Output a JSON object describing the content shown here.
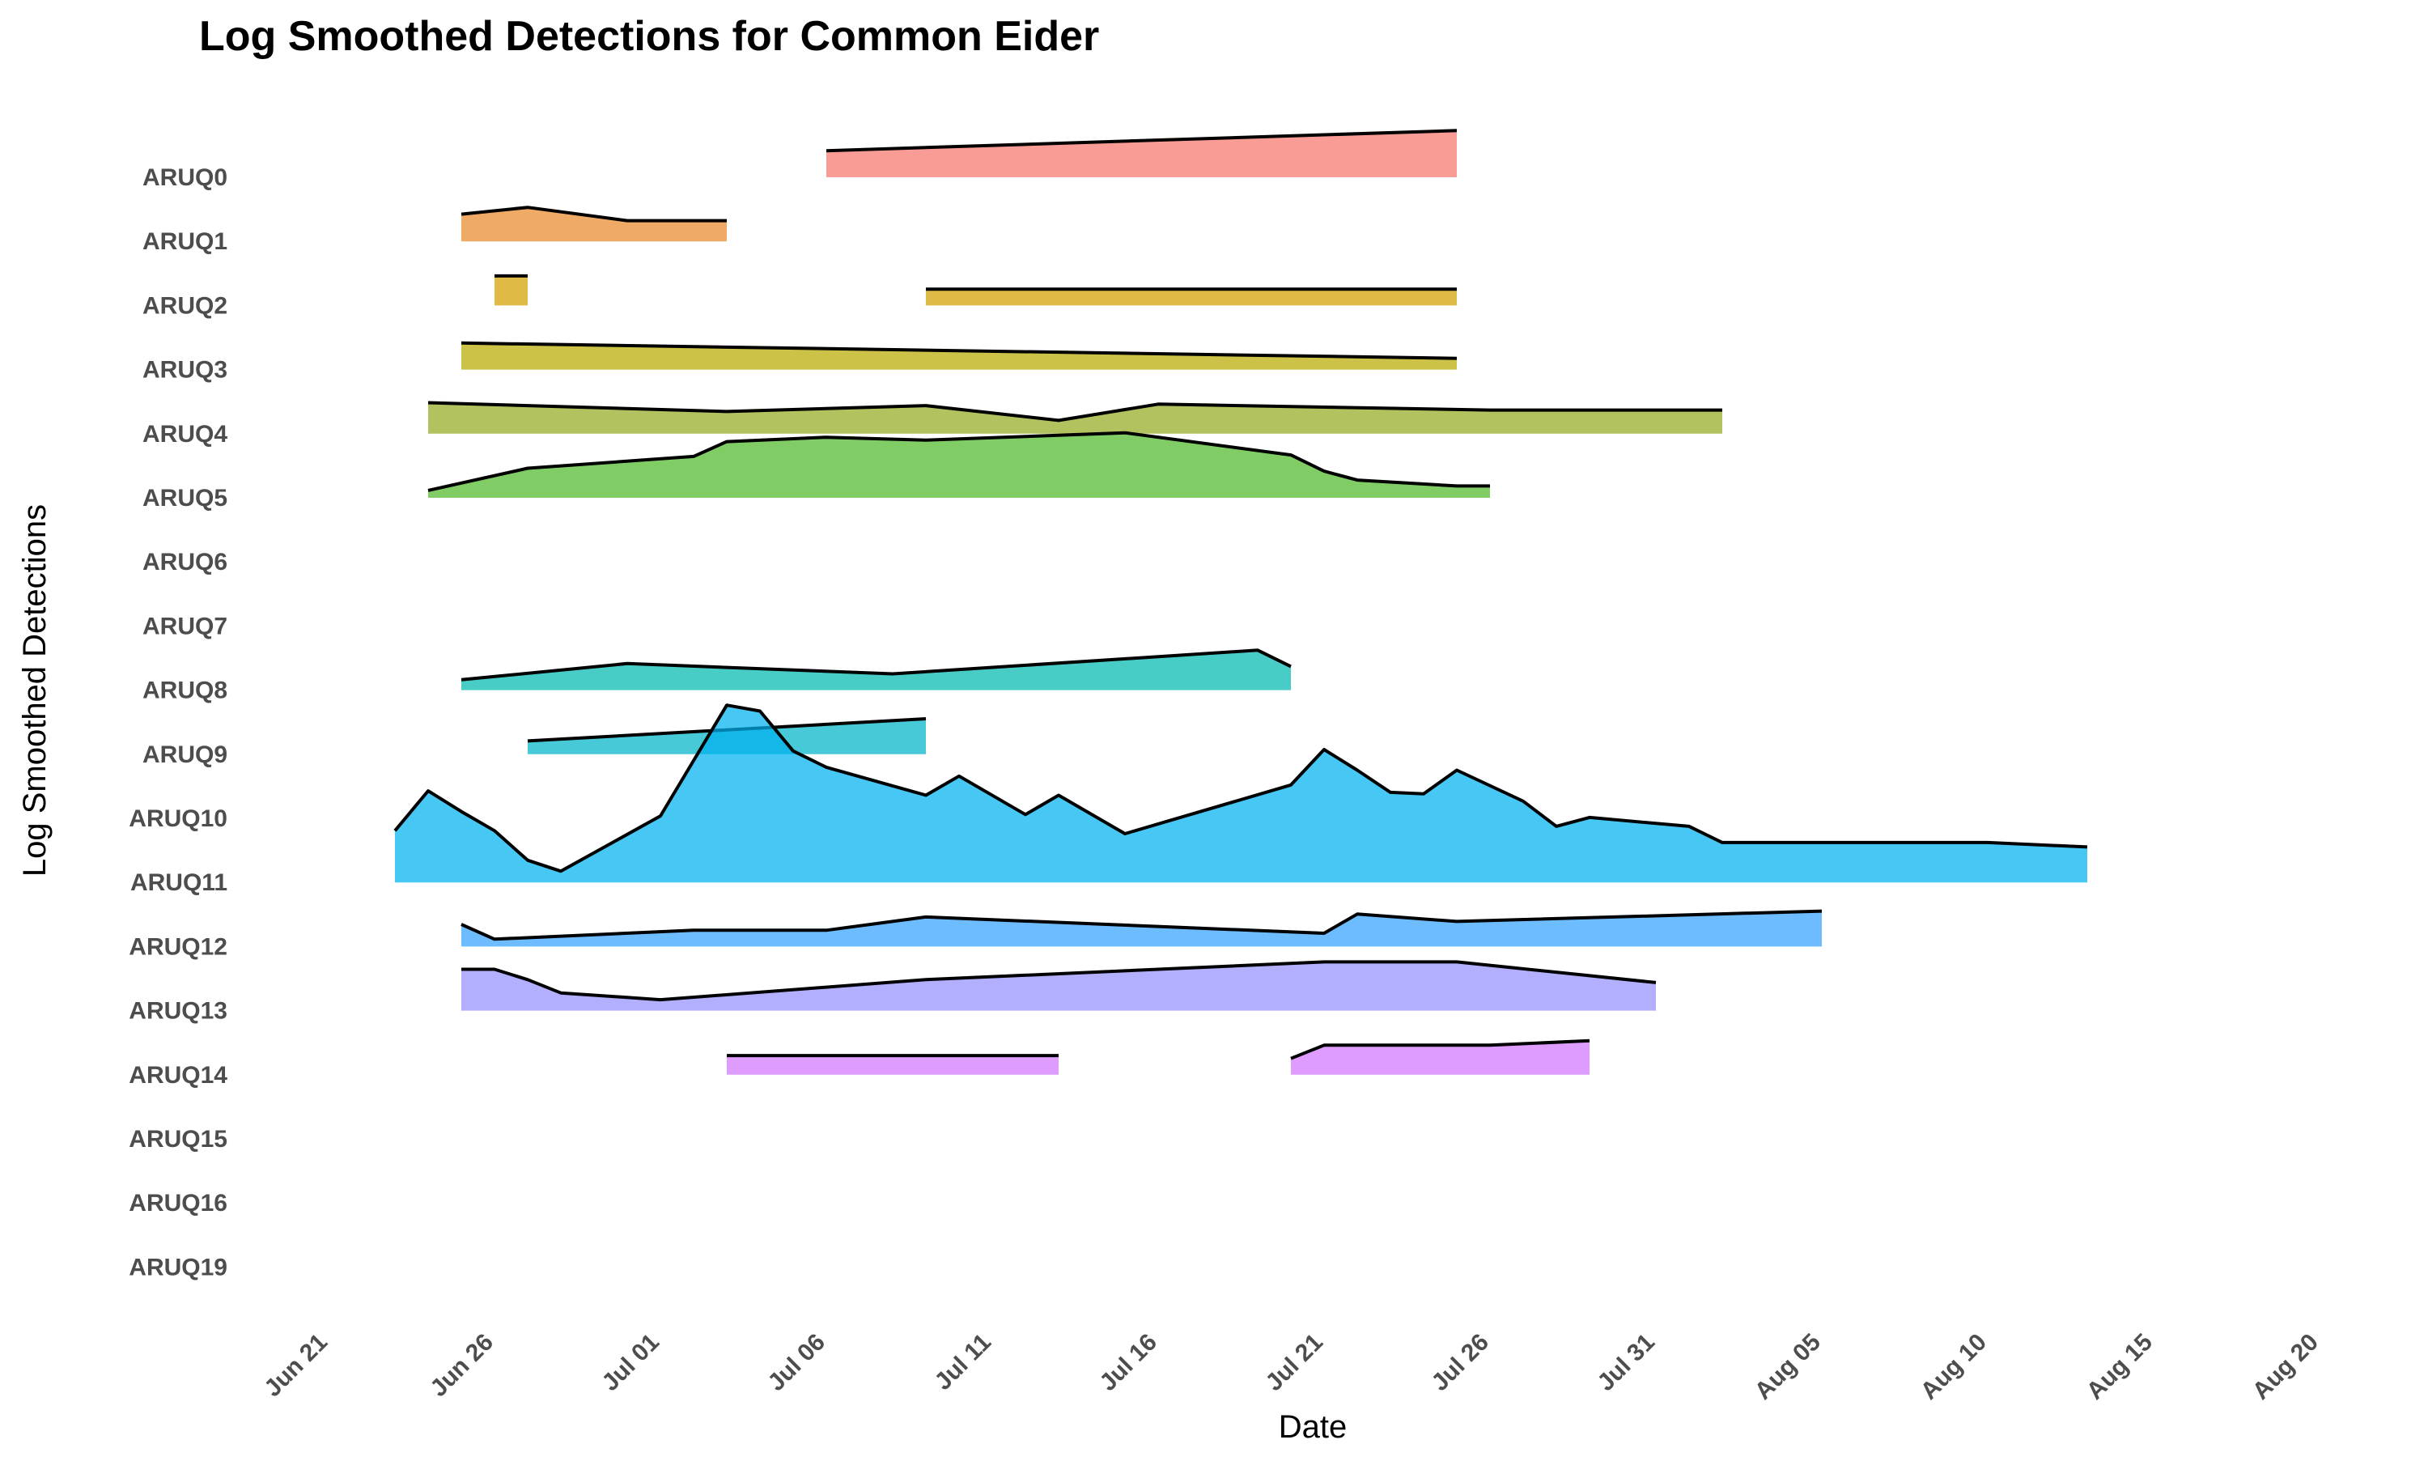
{
  "chart_data": {
    "type": "area",
    "subtype": "ridgeline",
    "title": "Log Smoothed Detections for Common Eider",
    "xlabel": "Date",
    "ylabel": "Log Smoothed Detections",
    "x_scale": "date",
    "xlim": [
      "2024-06-21",
      "2024-08-20"
    ],
    "x_ticks": [
      "2024-06-21",
      "2024-06-26",
      "2024-07-01",
      "2024-07-06",
      "2024-07-11",
      "2024-07-16",
      "2024-07-21",
      "2024-07-26",
      "2024-07-31",
      "2024-08-05",
      "2024-08-10",
      "2024-08-15",
      "2024-08-20"
    ],
    "x_tick_labels": [
      "Jun 21",
      "Jun 26",
      "Jul 01",
      "Jul 06",
      "Jul 11",
      "Jul 16",
      "Jul 21",
      "Jul 26",
      "Jul 31",
      "Aug 05",
      "Aug 10",
      "Aug 15",
      "Aug 20"
    ],
    "categories": [
      "ARUQ0",
      "ARUQ1",
      "ARUQ2",
      "ARUQ3",
      "ARUQ4",
      "ARUQ5",
      "ARUQ6",
      "ARUQ7",
      "ARUQ8",
      "ARUQ9",
      "ARUQ10",
      "ARUQ11",
      "ARUQ12",
      "ARUQ13",
      "ARUQ14",
      "ARUQ15",
      "ARUQ16",
      "ARUQ19"
    ],
    "grid": false,
    "legend": "none",
    "series": [
      {
        "category": "ARUQ0",
        "color": "#f8766d",
        "segments": [
          [
            [
              "2024-07-06",
              0.9
            ],
            [
              "2024-07-25",
              1.58
            ]
          ]
        ]
      },
      {
        "category": "ARUQ1",
        "color": "#e98a2a",
        "segments": [
          [
            [
              "2024-06-25",
              0.92
            ],
            [
              "2024-06-27",
              1.15
            ],
            [
              "2024-06-30",
              0.7
            ],
            [
              "2024-07-03",
              0.7
            ]
          ]
        ]
      },
      {
        "category": "ARUQ2",
        "color": "#d49f00",
        "segments": [
          [
            [
              "2024-06-26",
              1.0
            ],
            [
              "2024-06-27",
              1.0
            ]
          ],
          [
            [
              "2024-07-09",
              0.55
            ],
            [
              "2024-07-25",
              0.55
            ]
          ]
        ]
      },
      {
        "category": "ARUQ3",
        "color": "#b8ab00",
        "segments": [
          [
            [
              "2024-06-25",
              0.9
            ],
            [
              "2024-07-25",
              0.38
            ]
          ]
        ]
      },
      {
        "category": "ARUQ4",
        "color": "#94aa20",
        "segments": [
          [
            [
              "2024-06-24",
              1.05
            ],
            [
              "2024-07-03",
              0.75
            ],
            [
              "2024-07-09",
              0.95
            ],
            [
              "2024-07-13",
              0.45
            ],
            [
              "2024-07-16",
              1.0
            ],
            [
              "2024-07-26",
              0.8
            ],
            [
              "2024-08-02",
              0.8
            ]
          ]
        ]
      },
      {
        "category": "ARUQ5",
        "color": "#4fba2a",
        "segments": [
          [
            [
              "2024-06-24",
              0.25
            ],
            [
              "2024-06-27",
              1.0
            ],
            [
              "2024-07-02",
              1.4
            ],
            [
              "2024-07-03",
              1.9
            ],
            [
              "2024-07-06",
              2.05
            ],
            [
              "2024-07-09",
              1.95
            ],
            [
              "2024-07-15",
              2.2
            ],
            [
              "2024-07-20",
              1.45
            ],
            [
              "2024-07-21",
              0.9
            ],
            [
              "2024-07-22",
              0.6
            ],
            [
              "2024-07-25",
              0.4
            ],
            [
              "2024-07-26",
              0.4
            ]
          ]
        ]
      },
      {
        "category": "ARUQ6",
        "color": "#00b59c",
        "segments": []
      },
      {
        "category": "ARUQ7",
        "color": "#00bfc4",
        "segments": []
      },
      {
        "category": "ARUQ8",
        "color": "#00b8b0",
        "segments": [
          [
            [
              "2024-06-25",
              0.35
            ],
            [
              "2024-06-30",
              0.9
            ],
            [
              "2024-07-08",
              0.55
            ],
            [
              "2024-07-19",
              1.35
            ],
            [
              "2024-07-20",
              0.8
            ]
          ]
        ]
      },
      {
        "category": "ARUQ9",
        "color": "#00b4c8",
        "segments": [
          [
            [
              "2024-06-27",
              0.45
            ],
            [
              "2024-07-09",
              1.2
            ]
          ]
        ]
      },
      {
        "category": "ARUQ10",
        "color": "#00aff0",
        "segments": []
      },
      {
        "category": "ARUQ11",
        "color": "#00b2f0",
        "segments": [
          [
            [
              "2024-06-23",
              1.75
            ],
            [
              "2024-06-24",
              3.1
            ],
            [
              "2024-06-25",
              2.4
            ],
            [
              "2024-06-26",
              1.75
            ],
            [
              "2024-06-27",
              0.75
            ],
            [
              "2024-06-28",
              0.38
            ],
            [
              "2024-07-01",
              2.25
            ],
            [
              "2024-07-03",
              6.0
            ],
            [
              "2024-07-04",
              5.8
            ],
            [
              "2024-07-05",
              4.45
            ],
            [
              "2024-07-06",
              3.9
            ],
            [
              "2024-07-09",
              2.95
            ],
            [
              "2024-07-10",
              3.6
            ],
            [
              "2024-07-12",
              2.3
            ],
            [
              "2024-07-13",
              2.95
            ],
            [
              "2024-07-15",
              1.65
            ],
            [
              "2024-07-20",
              3.3
            ],
            [
              "2024-07-21",
              4.5
            ],
            [
              "2024-07-22",
              3.8
            ],
            [
              "2024-07-23",
              3.05
            ],
            [
              "2024-07-24",
              3.0
            ],
            [
              "2024-07-25",
              3.8
            ],
            [
              "2024-07-27",
              2.75
            ],
            [
              "2024-07-28",
              1.9
            ],
            [
              "2024-07-29",
              2.2
            ],
            [
              "2024-08-01",
              1.9
            ],
            [
              "2024-08-02",
              1.35
            ],
            [
              "2024-08-10",
              1.35
            ],
            [
              "2024-08-13",
              1.2
            ]
          ]
        ]
      },
      {
        "category": "ARUQ12",
        "color": "#35a2ff",
        "segments": [
          [
            [
              "2024-06-25",
              0.75
            ],
            [
              "2024-06-26",
              0.25
            ],
            [
              "2024-07-02",
              0.55
            ],
            [
              "2024-07-06",
              0.55
            ],
            [
              "2024-07-09",
              1.0
            ],
            [
              "2024-07-21",
              0.45
            ],
            [
              "2024-07-22",
              1.1
            ],
            [
              "2024-07-25",
              0.85
            ],
            [
              "2024-08-05",
              1.2
            ]
          ]
        ]
      },
      {
        "category": "ARUQ13",
        "color": "#9590ff",
        "segments": [
          [
            [
              "2024-06-25",
              1.4
            ],
            [
              "2024-06-26",
              1.4
            ],
            [
              "2024-06-27",
              1.05
            ],
            [
              "2024-06-28",
              0.6
            ],
            [
              "2024-07-01",
              0.37
            ],
            [
              "2024-07-09",
              1.05
            ],
            [
              "2024-07-21",
              1.65
            ],
            [
              "2024-07-25",
              1.65
            ],
            [
              "2024-07-31",
              0.95
            ]
          ]
        ]
      },
      {
        "category": "ARUQ14",
        "color": "#d376ff",
        "segments": [
          [
            [
              "2024-07-03",
              0.65
            ],
            [
              "2024-07-13",
              0.65
            ]
          ],
          [
            [
              "2024-07-20",
              0.55
            ],
            [
              "2024-07-21",
              1.0
            ],
            [
              "2024-07-26",
              1.0
            ],
            [
              "2024-07-29",
              1.15
            ]
          ]
        ]
      },
      {
        "category": "ARUQ15",
        "color": "#f763e0",
        "segments": []
      },
      {
        "category": "ARUQ16",
        "color": "#fd61d1",
        "segments": []
      },
      {
        "category": "ARUQ19",
        "color": "#ff65ac",
        "segments": []
      }
    ]
  }
}
